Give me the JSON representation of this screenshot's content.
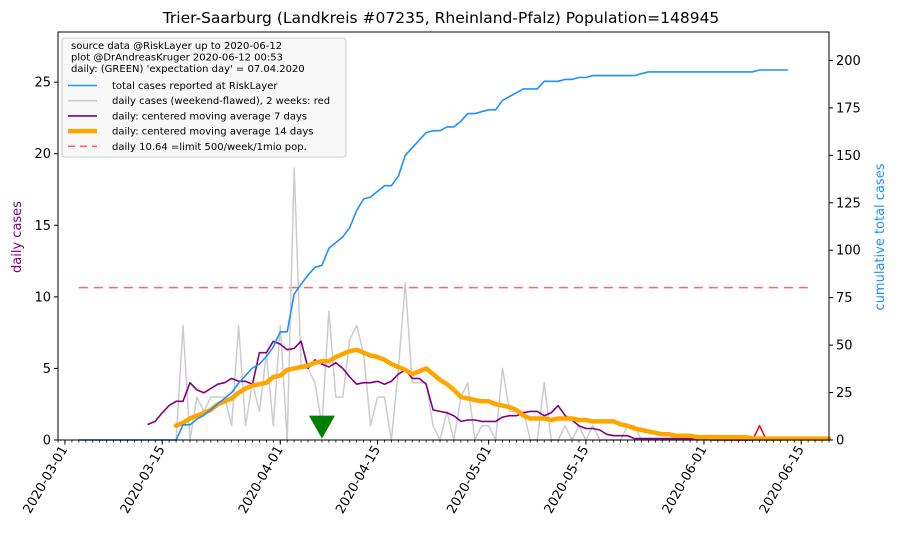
{
  "chart_data": {
    "type": "line",
    "title": "Trier-Saarburg (Landkreis #07235, Rheinland-Pfalz) Population=148945",
    "ylabel_left": "daily cases",
    "ylabel_right": "cumulative total cases",
    "ylabel_left_color": "#800080",
    "ylabel_right_color": "#1e90ff",
    "ylim_left": [
      0,
      28.5
    ],
    "ylim_right": [
      0,
      215
    ],
    "yticks_left": [
      0,
      5,
      10,
      15,
      20,
      25
    ],
    "yticks_right": [
      0,
      25,
      50,
      75,
      100,
      125,
      150,
      175,
      200
    ],
    "x_start": "2020-02-29",
    "x_end": "2020-06-19",
    "xticks": [
      "2020-03-01",
      "2020-03-15",
      "2020-04-01",
      "2020-04-15",
      "2020-05-01",
      "2020-05-15",
      "2020-06-01",
      "2020-06-15"
    ],
    "legend": {
      "placement": "top-left",
      "header": [
        "source data @RiskLayer up to 2020-06-12",
        "plot @DrAndreasKruger 2020-06-12 00:53",
        "daily: (GREEN) 'expectation day' = 07.04.2020"
      ],
      "entries": [
        {
          "label": "total cases reported at RiskLayer",
          "color": "#1e90ff",
          "style": "solid"
        },
        {
          "label": "daily cases (weekend-flawed), 2 weeks: red",
          "color": "#cccccc",
          "style": "solid"
        },
        {
          "label": "daily: centered moving average 7 days",
          "color": "#800080",
          "style": "solid"
        },
        {
          "label": "daily: centered moving average 14 days",
          "color": "#ffa500",
          "style": "thick"
        },
        {
          "label": "daily 10.64 =limit 500/week/1mio pop.",
          "color": "#ff6666",
          "style": "dashed"
        }
      ]
    },
    "limit_line": {
      "value": 10.64,
      "from": "2020-03-03",
      "to": "2020-06-16"
    },
    "expectation_day": "2020-04-07",
    "series": [
      {
        "name": "total cases reported at RiskLayer",
        "axis": "right",
        "color": "#1e90ff",
        "start": "2020-03-03",
        "values": [
          0,
          0,
          0,
          0,
          0,
          0,
          0,
          0,
          0,
          0,
          0,
          0,
          0,
          0,
          0,
          8,
          8,
          11,
          13,
          16,
          19,
          22,
          25,
          30,
          34,
          38,
          40,
          44,
          49,
          57,
          57,
          77,
          82,
          87,
          91,
          92,
          101,
          104,
          107,
          112,
          121,
          127,
          128,
          131,
          134,
          134,
          139,
          150,
          154,
          158,
          162,
          163,
          163,
          165,
          165,
          168,
          172,
          172,
          173,
          174,
          174,
          179,
          181,
          183,
          185,
          185,
          185,
          189,
          189,
          189,
          190,
          190,
          191,
          191,
          192,
          192,
          192,
          192,
          192,
          192,
          192,
          193,
          194,
          194,
          194,
          194,
          194,
          194,
          194,
          194,
          194,
          194,
          194,
          194,
          194,
          194,
          194,
          194,
          195,
          195,
          195,
          195,
          195
        ]
      },
      {
        "name": "daily cases (weekend-flawed), 2 weeks: red",
        "axis": "left",
        "color": "#cccccc",
        "recent_color": "#ff0000",
        "recent_from": "2020-06-04",
        "start": "2020-03-03",
        "values": [
          0,
          0,
          0,
          0,
          0,
          0,
          0,
          0,
          0,
          0,
          0,
          0,
          0,
          0,
          0,
          8,
          0,
          3,
          2,
          3,
          3,
          3,
          1,
          8,
          1,
          4,
          2,
          6,
          1,
          8,
          0,
          19,
          5,
          5,
          4,
          1,
          9,
          3,
          3,
          7,
          8,
          6,
          1,
          3,
          3,
          0,
          5,
          11,
          4,
          4,
          4,
          1,
          0,
          2,
          0,
          3,
          4,
          0,
          1,
          1,
          0,
          5,
          2,
          2,
          2,
          0,
          0,
          4,
          0,
          0,
          1,
          0,
          1,
          0,
          1,
          0,
          0,
          0,
          0,
          1,
          1,
          0,
          0,
          0,
          0,
          0,
          0,
          0,
          0,
          0,
          0,
          0,
          0,
          0,
          0,
          0,
          0,
          0,
          1,
          0,
          0,
          0,
          0
        ]
      },
      {
        "name": "daily: centered moving average 7 days",
        "axis": "left",
        "color": "#800080",
        "start": "2020-03-13",
        "values": [
          1.1,
          1.3,
          1.9,
          2.4,
          2.7,
          2.7,
          4.0,
          3.5,
          3.3,
          3.6,
          3.9,
          4.0,
          4.3,
          4.1,
          4.1,
          3.9,
          6.1,
          6.1,
          6.9,
          6.7,
          6.3,
          6.4,
          6.9,
          5.0,
          5.6,
          5.3,
          5.1,
          5.4,
          5.0,
          4.4,
          3.9,
          4.0,
          4.0,
          4.1,
          3.9,
          4.1,
          4.6,
          4.9,
          4.3,
          4.3,
          3.9,
          2.1,
          2.0,
          1.9,
          1.7,
          1.3,
          1.4,
          1.4,
          1.3,
          1.3,
          1.3,
          1.6,
          1.7,
          1.7,
          1.9,
          2.0,
          2.0,
          1.7,
          1.9,
          2.4,
          1.7,
          1.4,
          1.0,
          0.8,
          0.8,
          0.7,
          0.4,
          0.3,
          0.3,
          0.3,
          0.1,
          0.1,
          0.1,
          0.1,
          0.1,
          0.1,
          0.1,
          0.1,
          0.1,
          0.1,
          0.1,
          0,
          0,
          0,
          0,
          0,
          0,
          0,
          0,
          0,
          0,
          0.1,
          0.1,
          0.1,
          0.1,
          0.1,
          0,
          0
        ]
      },
      {
        "name": "daily: centered moving average 14 days",
        "axis": "left",
        "color": "#ffa500",
        "start": "2020-03-17",
        "values": [
          1.0,
          1.2,
          1.5,
          1.7,
          1.9,
          2.1,
          2.5,
          2.7,
          2.9,
          3.3,
          3.6,
          3.8,
          3.9,
          4.0,
          4.4,
          4.5,
          4.9,
          5.0,
          5.1,
          5.2,
          5.4,
          5.5,
          5.5,
          5.8,
          6.0,
          6.2,
          6.3,
          6.1,
          5.9,
          5.8,
          5.6,
          5.3,
          5.1,
          4.9,
          4.6,
          4.8,
          5.0,
          4.6,
          4.2,
          3.9,
          3.5,
          3.0,
          2.9,
          2.8,
          2.7,
          2.7,
          2.5,
          2.4,
          2.3,
          2.1,
          1.7,
          1.5,
          1.5,
          1.5,
          1.4,
          1.5,
          1.5,
          1.5,
          1.4,
          1.4,
          1.3,
          1.3,
          1.3,
          1.3,
          1.1,
          1.0,
          0.8,
          0.7,
          0.6,
          0.5,
          0.4,
          0.4,
          0.3,
          0.3,
          0.3,
          0.2,
          0.2,
          0.2,
          0.2,
          0.2,
          0.2,
          0.2,
          0.2,
          0.1,
          0.1,
          0.1,
          0.1,
          0.1,
          0.1,
          0.1,
          0.1,
          0.1,
          0.1,
          0.1,
          0.1
        ]
      }
    ]
  }
}
